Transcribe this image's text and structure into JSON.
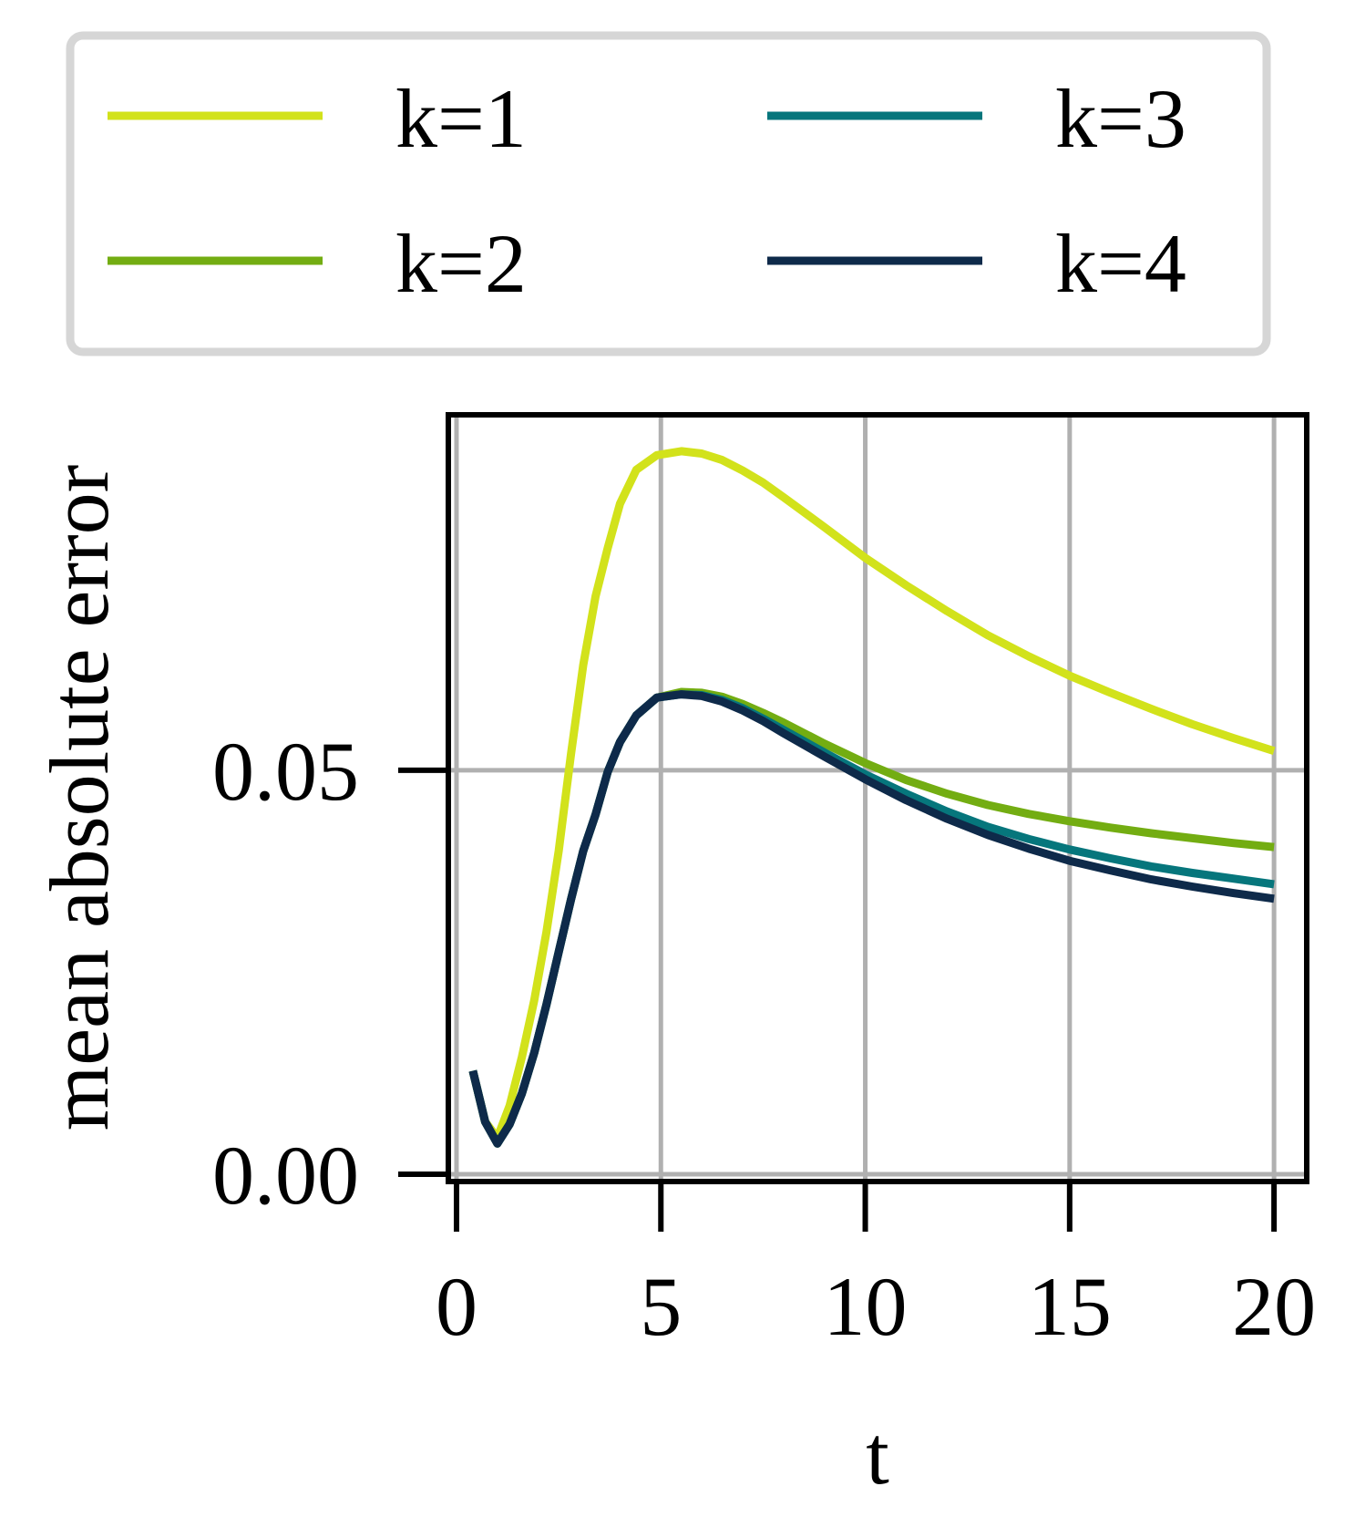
{
  "chart_data": {
    "type": "line",
    "xlabel": "t",
    "ylabel": "mean absolute error",
    "xlim": [
      -0.2,
      20.8
    ],
    "ylim": [
      -0.0009,
      0.094
    ],
    "xticks": [
      0,
      5,
      10,
      15,
      20
    ],
    "xtick_labels": [
      "0",
      "5",
      "10",
      "15",
      "20"
    ],
    "yticks": [
      0.0,
      0.05
    ],
    "ytick_labels": [
      "0.00",
      "0.05"
    ],
    "grid": true,
    "legend": {
      "placement": "above",
      "columns": 2
    },
    "series": [
      {
        "name": "k=1",
        "color": "#d2e21b",
        "x": [
          0.4,
          0.7,
          1.0,
          1.3,
          1.6,
          1.9,
          2.2,
          2.5,
          2.8,
          3.1,
          3.4,
          3.7,
          4.0,
          4.4,
          4.9,
          5.5,
          6.0,
          6.5,
          7.0,
          7.5,
          8.0,
          9.0,
          10.0,
          11.0,
          12.0,
          13.0,
          14.0,
          15.0,
          16.0,
          17.0,
          18.0,
          19.0,
          20.0
        ],
        "y": [
          0.0128,
          0.0065,
          0.0045,
          0.0085,
          0.0145,
          0.0215,
          0.03,
          0.04,
          0.052,
          0.063,
          0.0715,
          0.0775,
          0.083,
          0.0872,
          0.089,
          0.0895,
          0.0892,
          0.0884,
          0.0871,
          0.0856,
          0.0838,
          0.0801,
          0.0763,
          0.0729,
          0.0697,
          0.0667,
          0.0641,
          0.0617,
          0.0596,
          0.0576,
          0.0557,
          0.054,
          0.0524
        ]
      },
      {
        "name": "k=2",
        "color": "#73ad12",
        "x": [
          0.4,
          0.7,
          1.0,
          1.3,
          1.6,
          1.9,
          2.2,
          2.5,
          2.8,
          3.1,
          3.4,
          3.7,
          4.0,
          4.4,
          4.9,
          5.5,
          6.0,
          6.5,
          7.0,
          7.5,
          8.0,
          9.0,
          10.0,
          11.0,
          12.0,
          13.0,
          14.0,
          15.0,
          16.0,
          17.0,
          18.0,
          19.0,
          20.0
        ],
        "y": [
          0.0128,
          0.0065,
          0.0038,
          0.0062,
          0.01,
          0.015,
          0.021,
          0.0275,
          0.034,
          0.04,
          0.0445,
          0.0498,
          0.0535,
          0.0568,
          0.059,
          0.0597,
          0.0596,
          0.0591,
          0.0582,
          0.0571,
          0.0559,
          0.0533,
          0.0509,
          0.0488,
          0.0471,
          0.0457,
          0.0446,
          0.0437,
          0.0429,
          0.0422,
          0.0416,
          0.041,
          0.0405
        ]
      },
      {
        "name": "k=3",
        "color": "#06767c",
        "x": [
          0.4,
          0.7,
          1.0,
          1.3,
          1.6,
          1.9,
          2.2,
          2.5,
          2.8,
          3.1,
          3.4,
          3.7,
          4.0,
          4.4,
          4.9,
          5.5,
          6.0,
          6.5,
          7.0,
          7.5,
          8.0,
          9.0,
          10.0,
          11.0,
          12.0,
          13.0,
          14.0,
          15.0,
          16.0,
          17.0,
          18.0,
          19.0,
          20.0
        ],
        "y": [
          0.0128,
          0.0065,
          0.0038,
          0.0062,
          0.01,
          0.015,
          0.021,
          0.0275,
          0.034,
          0.04,
          0.0445,
          0.0498,
          0.0535,
          0.0568,
          0.059,
          0.0594,
          0.0593,
          0.0587,
          0.0577,
          0.0564,
          0.055,
          0.0522,
          0.0495,
          0.0471,
          0.0449,
          0.043,
          0.0415,
          0.0402,
          0.0391,
          0.0381,
          0.0373,
          0.0366,
          0.0359
        ]
      },
      {
        "name": "k=4",
        "color": "#0e2a4a",
        "x": [
          0.4,
          0.7,
          1.0,
          1.3,
          1.6,
          1.9,
          2.2,
          2.5,
          2.8,
          3.1,
          3.4,
          3.7,
          4.0,
          4.4,
          4.9,
          5.5,
          6.0,
          6.5,
          7.0,
          7.5,
          8.0,
          9.0,
          10.0,
          11.0,
          12.0,
          13.0,
          14.0,
          15.0,
          16.0,
          17.0,
          18.0,
          19.0,
          20.0
        ],
        "y": [
          0.0128,
          0.0065,
          0.0038,
          0.0062,
          0.01,
          0.015,
          0.021,
          0.0275,
          0.034,
          0.04,
          0.0445,
          0.0498,
          0.0535,
          0.0568,
          0.059,
          0.0594,
          0.0592,
          0.0585,
          0.0574,
          0.0561,
          0.0546,
          0.0517,
          0.0489,
          0.0463,
          0.044,
          0.042,
          0.0403,
          0.0388,
          0.0376,
          0.0365,
          0.0356,
          0.0348,
          0.0341
        ]
      }
    ]
  }
}
